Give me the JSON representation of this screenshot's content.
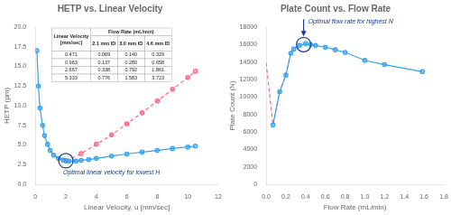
{
  "chart_data": [
    {
      "type": "line",
      "title": "HETP vs. Linear Velocity",
      "x_label": "Linear Velocity, u [mm/sec]",
      "y_label": "HETP (µm)",
      "xlim": [
        0,
        12
      ],
      "ylim": [
        0,
        20
      ],
      "xticks": [
        0,
        2,
        4,
        6,
        8,
        10,
        12
      ],
      "yticks": [
        {
          "value": 0,
          "label": "0.0"
        },
        2.5,
        {
          "value": 5,
          "label": "5.0"
        },
        7.5,
        {
          "value": 10,
          "label": "10.0"
        },
        12.5,
        {
          "value": 15,
          "label": "15.0"
        },
        17.5,
        {
          "value": 20,
          "label": "20.0"
        }
      ],
      "grid": false,
      "series": [
        {
          "x": [
            0.1,
            0.2,
            0.3,
            0.471,
            0.6,
            0.8,
            0.963,
            1.2,
            1.5,
            1.8,
            2.0,
            2.2,
            2.667,
            3.0,
            3.5,
            4.0,
            5.0,
            6.0,
            7.0,
            8.0,
            9.0,
            10.0,
            10.5
          ],
          "values": [
            17.0,
            12.5,
            9.7,
            7.5,
            6.2,
            5.1,
            4.3,
            3.7,
            3.3,
            3.1,
            3.0,
            2.95,
            2.95,
            3.05,
            3.15,
            3.3,
            3.6,
            3.85,
            4.1,
            4.3,
            4.55,
            4.75,
            4.85
          ],
          "line_style": "solid",
          "marker": "circle"
        },
        {
          "x": [
            2.0,
            3.0,
            4.0,
            5.0,
            6.0,
            7.0,
            8.0,
            9.0,
            10.0,
            10.5
          ],
          "values": [
            3.0,
            3.9,
            5.1,
            6.3,
            7.7,
            9.1,
            10.6,
            12.1,
            13.6,
            14.4
          ],
          "line_style": "dashed",
          "marker": "circle"
        }
      ],
      "annotations": [
        {
          "text": "Optimal linear velocity for lowest H",
          "x": 2.0,
          "y": 3.0,
          "color": "#1a3a8a",
          "arrow": false
        }
      ],
      "table": {
        "header_top": "Flow Rate (mL/min)",
        "columns": [
          "Linear Velocity\n[mm/sec]",
          "2.1 mm ID",
          "3.0 mm ID",
          "4.6 mm ID"
        ],
        "rows": [
          [
            "0.471",
            "0.069",
            "0.140",
            "0.329"
          ],
          [
            "0.963",
            "0.137",
            "0.280",
            "0.658"
          ],
          [
            "2.667",
            "0.338",
            "0.792",
            "1.861"
          ],
          [
            "5.333",
            "0.776",
            "1.583",
            "3.723"
          ]
        ]
      }
    },
    {
      "type": "line",
      "title": "Plate Count vs. Flow Rate",
      "x_label": "Flow Rate (mL/min)",
      "y_label": "Plate Count (N)",
      "xlim": [
        0,
        1.8
      ],
      "ylim": [
        0,
        18000
      ],
      "xticks": [
        {
          "value": 0,
          "label": "0.0"
        },
        0.2,
        0.4,
        0.6,
        0.8,
        {
          "value": 1,
          "label": "1.0"
        },
        1.2,
        1.4,
        1.6,
        1.8
      ],
      "yticks": [
        0,
        2000,
        4000,
        6000,
        8000,
        10000,
        12000,
        14000,
        16000,
        18000
      ],
      "grid": false,
      "series": [
        {
          "x": [
            0.069,
            0.137,
            0.2,
            0.25,
            0.28,
            0.338,
            0.4,
            0.45,
            0.5,
            0.6,
            0.7,
            0.8,
            1.0,
            1.2,
            1.583
          ],
          "values": [
            6800,
            10600,
            12500,
            15000,
            15500,
            15900,
            16100,
            16000,
            15900,
            15700,
            15400,
            15100,
            14200,
            13700,
            12900
          ],
          "line_style": "solid",
          "marker": "circle"
        },
        {
          "x": [
            0.0,
            0.069,
            0.137,
            0.2,
            0.25
          ],
          "values": [
            13900,
            6800,
            10600,
            12500,
            15000
          ],
          "line_style": "dashed",
          "marker": "none"
        }
      ],
      "annotations": [
        {
          "text": "Optimal flow rate for highest N",
          "x": 0.38,
          "y": 16000,
          "color": "#1a3a8a",
          "arrow": true
        }
      ]
    }
  ]
}
